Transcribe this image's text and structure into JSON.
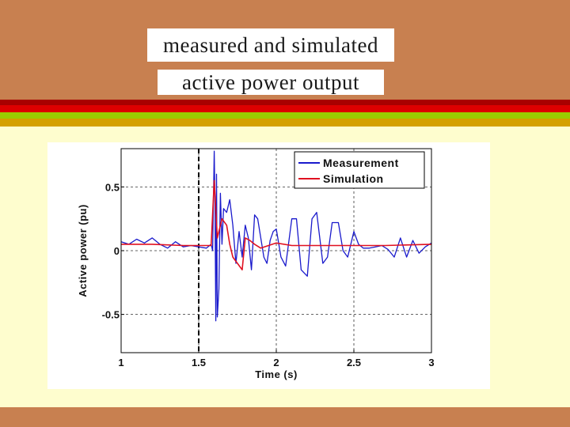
{
  "slide": {
    "title_line_1": "measured and simulated",
    "title_line_2": "active power output",
    "colors": {
      "background": "#fefdce",
      "band": "#c88050",
      "stripe_dark_red": "#a80000",
      "stripe_red": "#dd0000",
      "stripe_green": "#9acd00",
      "stripe_gold": "#d4a000"
    }
  },
  "chart_data": {
    "type": "line",
    "title": "",
    "xlabel": "Time (s)",
    "ylabel": "Active power (pu)",
    "xlim": [
      1,
      3
    ],
    "ylim": [
      -0.8,
      0.8
    ],
    "x_ticks": [
      "1",
      "1.5",
      "2",
      "2.5",
      "3"
    ],
    "y_ticks": [
      "0.5",
      "0",
      "-0.5"
    ],
    "grid": true,
    "grid_style": "dashed",
    "legend_position": "top-right",
    "event_marker_x": 1.5,
    "series": [
      {
        "name": "Measurement",
        "color": "#1a1acc",
        "x": [
          1.0,
          1.05,
          1.1,
          1.15,
          1.2,
          1.25,
          1.3,
          1.35,
          1.4,
          1.45,
          1.5,
          1.55,
          1.58,
          1.59,
          1.6,
          1.605,
          1.61,
          1.615,
          1.62,
          1.63,
          1.64,
          1.65,
          1.66,
          1.68,
          1.7,
          1.72,
          1.74,
          1.76,
          1.78,
          1.8,
          1.82,
          1.84,
          1.86,
          1.88,
          1.9,
          1.92,
          1.94,
          1.96,
          1.98,
          2.0,
          2.03,
          2.06,
          2.1,
          2.13,
          2.16,
          2.2,
          2.23,
          2.26,
          2.3,
          2.33,
          2.36,
          2.4,
          2.43,
          2.46,
          2.5,
          2.53,
          2.56,
          2.6,
          2.64,
          2.68,
          2.72,
          2.76,
          2.8,
          2.84,
          2.88,
          2.92,
          2.96,
          3.0
        ],
        "y": [
          0.07,
          0.05,
          0.09,
          0.06,
          0.1,
          0.05,
          0.02,
          0.07,
          0.03,
          0.04,
          0.03,
          0.02,
          0.05,
          0.0,
          0.78,
          0.35,
          -0.55,
          0.6,
          -0.52,
          -0.3,
          0.45,
          0.05,
          0.33,
          0.3,
          0.4,
          0.2,
          -0.1,
          0.15,
          -0.05,
          0.2,
          0.1,
          -0.15,
          0.28,
          0.25,
          0.1,
          -0.05,
          -0.1,
          0.08,
          0.15,
          0.17,
          -0.05,
          -0.12,
          0.25,
          0.25,
          -0.15,
          -0.2,
          0.25,
          0.3,
          -0.1,
          -0.05,
          0.22,
          0.22,
          0.0,
          -0.05,
          0.15,
          0.05,
          0.02,
          0.02,
          0.03,
          0.04,
          0.01,
          -0.05,
          0.1,
          -0.05,
          0.08,
          -0.02,
          0.03,
          0.06
        ]
      },
      {
        "name": "Simulation",
        "color": "#e01020",
        "x": [
          1.0,
          1.2,
          1.4,
          1.55,
          1.58,
          1.6,
          1.62,
          1.65,
          1.68,
          1.7,
          1.72,
          1.75,
          1.78,
          1.8,
          1.83,
          1.86,
          1.9,
          1.95,
          2.0,
          2.1,
          2.3,
          2.5,
          2.7,
          3.0
        ],
        "y": [
          0.05,
          0.05,
          0.04,
          0.04,
          0.04,
          0.55,
          0.1,
          0.25,
          0.2,
          0.05,
          -0.05,
          -0.1,
          -0.15,
          0.1,
          0.08,
          0.05,
          0.02,
          0.04,
          0.06,
          0.04,
          0.04,
          0.04,
          0.04,
          0.05
        ]
      }
    ]
  }
}
